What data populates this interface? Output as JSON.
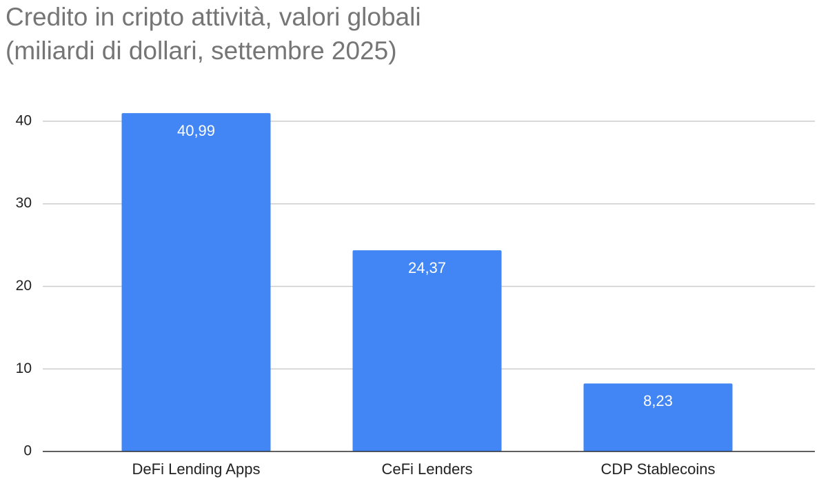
{
  "chart_data": {
    "type": "bar",
    "title": "Credito in cripto attività, valori globali",
    "subtitle": "(miliardi di dollari, settembre 2025)",
    "categories": [
      "DeFi Lending Apps",
      "CeFi Lenders",
      "CDP Stablecoins"
    ],
    "values": [
      40.99,
      24.37,
      8.23
    ],
    "value_labels": [
      "40,99",
      "24,37",
      "8,23"
    ],
    "color": "#4285f4",
    "ylim": [
      0,
      43
    ],
    "yticks": [
      0,
      10,
      20,
      30,
      40
    ],
    "grid": true
  }
}
